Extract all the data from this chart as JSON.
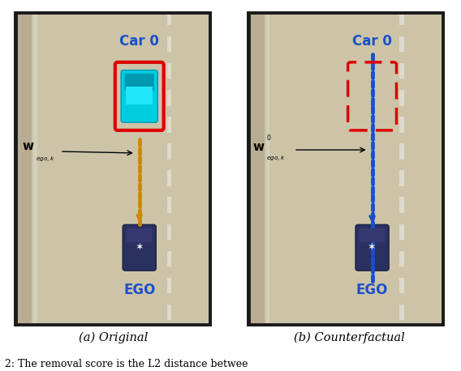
{
  "fig_width": 5.68,
  "fig_height": 4.58,
  "dpi": 100,
  "bg_color": "#ffffff",
  "road_bg": "#cdc4a8",
  "shoulder_color": "#b8ad92",
  "curb_color": "#a89d80",
  "grass_color": "#5a9e40",
  "lane_mark_color": "#ddd8c0",
  "caption_a": "(a) Original",
  "caption_b": "(b) Counterfactual",
  "bottom_text": "2: The removal score is the L2 distance betwee",
  "label_car0": "Car 0",
  "label_ego": "EGO",
  "blue_label_color": "#1a50c8",
  "dotted_color_left": "#cc8800",
  "dotted_color_right": "#1a50c8",
  "car0_box_color": "#dd0000",
  "panel_border_color": "#1a1a1a",
  "cyan_car_color": "#00cce0",
  "cyan_car_dark": "#0098b0",
  "ego_car_color": "#2a3060",
  "ego_car_dark": "#1a2040"
}
